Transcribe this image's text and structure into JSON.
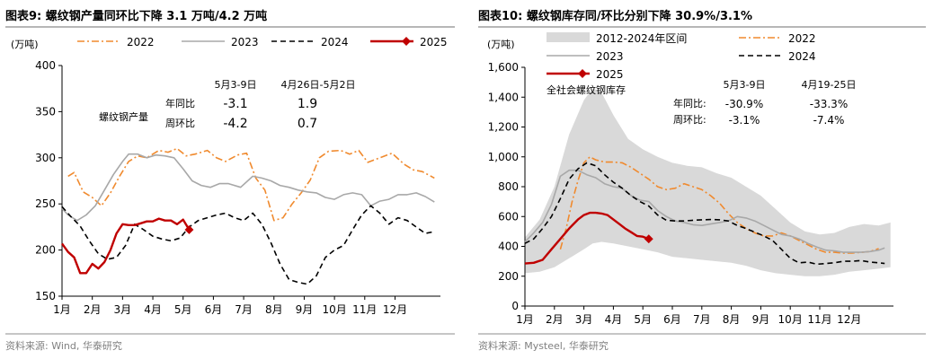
{
  "chart_data": [
    {
      "type": "line",
      "title_prefix": "图表9:",
      "title": "螺纹钢产量同环比下降 3.1 万吨/4.2 万吨",
      "ylabel": "(万吨)",
      "ylim": [
        150,
        400
      ],
      "yticks": [
        150,
        200,
        250,
        300,
        350,
        400
      ],
      "xlim": [
        1,
        13.5
      ],
      "xticks": [
        1,
        2,
        3,
        4,
        5,
        6,
        7,
        8,
        9,
        10,
        11,
        12
      ],
      "xtick_labels": [
        "1月",
        "2月",
        "3月",
        "4月",
        "5月",
        "6月",
        "7月",
        "8月",
        "9月",
        "10月",
        "11月",
        "12月"
      ],
      "legend": [
        "2022",
        "2023",
        "2024",
        "2025"
      ],
      "series": [
        {
          "name": "2022",
          "style": "dashdot",
          "color": "#F08A2E",
          "x": [
            1.2,
            1.4,
            1.7,
            2.0,
            2.3,
            2.6,
            2.9,
            3.2,
            3.5,
            3.8,
            4.2,
            4.5,
            4.8,
            5.1,
            5.4,
            5.8,
            6.1,
            6.4,
            6.8,
            7.1,
            7.4,
            7.7,
            8.0,
            8.3,
            8.6,
            8.9,
            9.2,
            9.5,
            9.8,
            10.2,
            10.5,
            10.8,
            11.1,
            11.5,
            11.9,
            12.3,
            12.6,
            12.9,
            13.3
          ],
          "y": [
            280,
            284,
            263,
            257,
            248,
            262,
            280,
            296,
            302,
            300,
            308,
            306,
            310,
            302,
            304,
            308,
            300,
            296,
            303,
            305,
            278,
            265,
            232,
            235,
            250,
            262,
            276,
            300,
            307,
            308,
            304,
            308,
            295,
            300,
            305,
            293,
            287,
            285,
            278
          ]
        },
        {
          "name": "2023",
          "style": "solid",
          "color": "#A8A8A8",
          "x": [
            1.0,
            1.2,
            1.5,
            1.8,
            2.1,
            2.4,
            2.7,
            3.0,
            3.2,
            3.5,
            3.8,
            4.1,
            4.4,
            4.7,
            5.0,
            5.3,
            5.6,
            5.9,
            6.2,
            6.5,
            6.9,
            7.3,
            7.6,
            7.9,
            8.2,
            8.5,
            8.8,
            9.1,
            9.4,
            9.7,
            10.0,
            10.3,
            10.6,
            10.9,
            11.2,
            11.5,
            11.8,
            12.1,
            12.4,
            12.7,
            13.0,
            13.3
          ],
          "y": [
            245,
            238,
            232,
            238,
            248,
            265,
            282,
            296,
            304,
            304,
            300,
            303,
            302,
            300,
            288,
            275,
            270,
            268,
            272,
            272,
            268,
            280,
            278,
            275,
            270,
            268,
            265,
            263,
            262,
            257,
            255,
            260,
            262,
            260,
            248,
            253,
            255,
            260,
            260,
            262,
            258,
            252
          ]
        },
        {
          "name": "2024",
          "style": "dash",
          "color": "#000000",
          "x": [
            1.0,
            1.3,
            1.6,
            1.9,
            2.2,
            2.5,
            2.8,
            3.1,
            3.4,
            3.7,
            4.0,
            4.3,
            4.6,
            4.9,
            5.2,
            5.5,
            5.8,
            6.1,
            6.4,
            6.7,
            7.0,
            7.3,
            7.6,
            7.9,
            8.2,
            8.5,
            8.8,
            9.1,
            9.4,
            9.7,
            10.0,
            10.3,
            10.6,
            10.9,
            11.2,
            11.5,
            11.8,
            12.1,
            12.4,
            12.7,
            13.0,
            13.3
          ],
          "y": [
            247,
            236,
            226,
            210,
            196,
            190,
            192,
            205,
            228,
            222,
            215,
            212,
            210,
            213,
            225,
            232,
            235,
            238,
            240,
            235,
            232,
            240,
            228,
            208,
            185,
            168,
            165,
            163,
            172,
            192,
            200,
            205,
            222,
            238,
            248,
            240,
            228,
            235,
            232,
            225,
            218,
            220
          ]
        },
        {
          "name": "2025",
          "style": "solid",
          "color": "#C00000",
          "x": [
            1.0,
            1.2,
            1.4,
            1.6,
            1.8,
            2.0,
            2.2,
            2.4,
            2.6,
            2.8,
            3.0,
            3.2,
            3.4,
            3.6,
            3.8,
            4.0,
            4.2,
            4.4,
            4.6,
            4.8,
            5.0,
            5.2
          ],
          "y": [
            207,
            198,
            192,
            175,
            175,
            185,
            180,
            187,
            200,
            218,
            228,
            227,
            227,
            229,
            231,
            231,
            234,
            232,
            232,
            228,
            233,
            222
          ],
          "end_marker": "diamond"
        }
      ],
      "annotations": {
        "header_a": "5月3-9日",
        "header_b": "4月26日-5月2日",
        "group_label": "螺纹钢产量",
        "rows": [
          {
            "label": "年同比",
            "a": "-3.1",
            "b": "1.9"
          },
          {
            "label": "周环比",
            "a": "-4.2",
            "b": "0.7"
          }
        ]
      },
      "source": "资料来源: Wind, 华泰研究"
    },
    {
      "type": "line",
      "title_prefix": "图表10:",
      "title": "螺纹钢库存同/环比分别下降 30.9%/3.1%",
      "ylabel": "(万吨)",
      "ylim": [
        0,
        1600
      ],
      "yticks": [
        0,
        200,
        400,
        600,
        800,
        1000,
        1200,
        1400,
        1600
      ],
      "ytick_labels": [
        "0",
        "200",
        "400",
        "600",
        "800",
        "1,000",
        "1,200",
        "1,400",
        "1,600"
      ],
      "xlim": [
        1,
        13.5
      ],
      "xticks": [
        1,
        2,
        3,
        4,
        5,
        6,
        7,
        8,
        9,
        10,
        11,
        12
      ],
      "xtick_labels": [
        "1月",
        "2月",
        "3月",
        "4月",
        "5月",
        "6月",
        "7月",
        "8月",
        "9月",
        "10月",
        "11月",
        "12月"
      ],
      "legend": [
        "2012-2024年区间",
        "2022",
        "2023",
        "2024",
        "2025"
      ],
      "band": {
        "name": "2012-2024年区间",
        "color": "#D9D9D9",
        "x": [
          1.0,
          1.5,
          2.0,
          2.5,
          3.0,
          3.3,
          3.6,
          4.0,
          4.5,
          5.0,
          5.5,
          6.0,
          6.5,
          7.0,
          7.5,
          8.0,
          8.5,
          9.0,
          9.5,
          10.0,
          10.5,
          11.0,
          11.5,
          12.0,
          12.5,
          13.0,
          13.4
        ],
        "upper": [
          460,
          580,
          800,
          1150,
          1380,
          1460,
          1430,
          1280,
          1120,
          1050,
          1000,
          960,
          940,
          930,
          890,
          860,
          800,
          740,
          650,
          560,
          500,
          480,
          490,
          530,
          550,
          540,
          560
        ],
        "lower": [
          220,
          230,
          260,
          320,
          380,
          420,
          430,
          420,
          400,
          380,
          360,
          330,
          320,
          310,
          300,
          290,
          270,
          240,
          220,
          210,
          200,
          200,
          210,
          230,
          240,
          250,
          260
        ]
      },
      "series": [
        {
          "name": "2022",
          "style": "dashdot",
          "color": "#F08A2E",
          "x": [
            2.2,
            2.4,
            2.6,
            2.8,
            3.0,
            3.2,
            3.4,
            3.7,
            4.0,
            4.3,
            4.6,
            4.9,
            5.2,
            5.5,
            5.8,
            6.1,
            6.4,
            6.7,
            7.0,
            7.3,
            7.6,
            7.9,
            8.2,
            8.5,
            8.8,
            9.1,
            9.4,
            9.7,
            10.0,
            10.3,
            10.6,
            10.9,
            11.2,
            11.5,
            11.8,
            12.1,
            12.4,
            12.7,
            13.0
          ],
          "y": [
            380,
            520,
            700,
            840,
            960,
            1000,
            980,
            965,
            965,
            960,
            930,
            890,
            850,
            800,
            780,
            790,
            820,
            800,
            780,
            740,
            690,
            620,
            560,
            520,
            490,
            470,
            470,
            490,
            470,
            440,
            410,
            380,
            360,
            360,
            355,
            355,
            360,
            365,
            385
          ]
        },
        {
          "name": "2023",
          "style": "solid",
          "color": "#A8A8A8",
          "x": [
            1.0,
            1.3,
            1.6,
            1.9,
            2.2,
            2.5,
            2.8,
            3.1,
            3.4,
            3.7,
            4.0,
            4.3,
            4.6,
            4.9,
            5.2,
            5.5,
            5.8,
            6.1,
            6.4,
            6.7,
            7.0,
            7.3,
            7.6,
            7.9,
            8.2,
            8.5,
            8.8,
            9.1,
            9.4,
            9.7,
            10.0,
            10.3,
            10.6,
            10.9,
            11.2,
            11.5,
            11.8,
            12.1,
            12.4,
            12.7,
            13.0,
            13.2
          ],
          "y": [
            430,
            490,
            560,
            680,
            870,
            910,
            910,
            880,
            860,
            820,
            800,
            790,
            740,
            710,
            700,
            640,
            600,
            570,
            560,
            545,
            540,
            550,
            560,
            570,
            600,
            590,
            570,
            540,
            510,
            480,
            470,
            450,
            420,
            395,
            375,
            370,
            360,
            360,
            360,
            365,
            375,
            390
          ]
        },
        {
          "name": "2024",
          "style": "dash",
          "color": "#000000",
          "x": [
            1.0,
            1.3,
            1.6,
            1.9,
            2.2,
            2.5,
            2.8,
            3.1,
            3.4,
            3.7,
            4.0,
            4.3,
            4.6,
            4.9,
            5.2,
            5.5,
            5.8,
            6.1,
            6.4,
            6.7,
            7.0,
            7.3,
            7.6,
            7.9,
            8.2,
            8.5,
            8.8,
            9.1,
            9.4,
            9.7,
            10.0,
            10.3,
            10.6,
            10.9,
            11.2,
            11.5,
            11.8,
            12.1,
            12.4,
            12.7,
            13.0,
            13.2
          ],
          "y": [
            420,
            450,
            520,
            600,
            720,
            850,
            920,
            960,
            940,
            880,
            830,
            790,
            740,
            700,
            670,
            610,
            575,
            570,
            570,
            575,
            578,
            580,
            578,
            570,
            540,
            520,
            495,
            470,
            440,
            380,
            320,
            290,
            295,
            280,
            285,
            290,
            300,
            300,
            305,
            295,
            290,
            285
          ]
        },
        {
          "name": "2025",
          "style": "solid",
          "color": "#C00000",
          "x": [
            1.0,
            1.3,
            1.6,
            1.9,
            2.2,
            2.5,
            2.8,
            3.0,
            3.2,
            3.4,
            3.6,
            3.8,
            4.0,
            4.2,
            4.4,
            4.6,
            4.8,
            5.0,
            5.2
          ],
          "y": [
            285,
            290,
            310,
            380,
            450,
            520,
            580,
            610,
            625,
            625,
            620,
            610,
            580,
            550,
            520,
            495,
            470,
            465,
            450
          ],
          "end_marker": "diamond"
        }
      ],
      "annotations": {
        "group_label": "全社会螺纹钢库存",
        "header_a": "5月3-9日",
        "header_b": "4月19-25日",
        "rows": [
          {
            "label": "年同比:",
            "a": "-30.9%",
            "b": "-33.3%"
          },
          {
            "label": "周环比:",
            "a": "-3.1%",
            "b": "-7.4%"
          }
        ]
      },
      "source": "资料来源: Mysteel, 华泰研究"
    }
  ]
}
